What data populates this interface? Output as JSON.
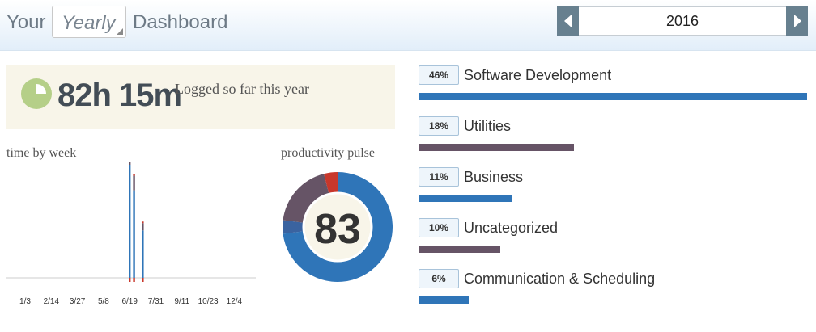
{
  "header": {
    "prefix": "Your",
    "period": "Yearly",
    "suffix": "Dashboard",
    "year": "2016"
  },
  "summary": {
    "time": "82h 15m",
    "label": "Logged so far this year"
  },
  "week_chart": {
    "title": "time by week",
    "x_labels": [
      "1/3",
      "2/14",
      "3/27",
      "5/8",
      "6/19",
      "7/31",
      "9/11",
      "10/23",
      "12/4"
    ],
    "series_colors": [
      "#2f75b8",
      "#665466",
      "#c8372b"
    ],
    "bars": [
      {
        "week": "6/19",
        "values": [
          31,
          5,
          0.5
        ]
      },
      {
        "week": "6/26",
        "values": [
          24,
          4,
          0.3
        ]
      },
      {
        "week": "7/10",
        "values": [
          13,
          2,
          0.3
        ]
      }
    ]
  },
  "pulse": {
    "title": "productivity pulse",
    "score": "83",
    "segments": [
      {
        "value": 73,
        "color": "#2f75b8"
      },
      {
        "value": 4,
        "color": "#3a63a0"
      },
      {
        "value": 19,
        "color": "#665466"
      },
      {
        "value": 4,
        "color": "#c8372b"
      }
    ]
  },
  "categories": [
    {
      "pct": "46%",
      "name": "Software Development",
      "share": 1.0,
      "color": "#2f75b8"
    },
    {
      "pct": "18%",
      "name": "Utilities",
      "share": 0.4,
      "color": "#665466"
    },
    {
      "pct": "11%",
      "name": "Business",
      "share": 0.24,
      "color": "#2f75b8"
    },
    {
      "pct": "10%",
      "name": "Uncategorized",
      "share": 0.21,
      "color": "#665466"
    },
    {
      "pct": "6%",
      "name": "Communication & Scheduling",
      "share": 0.13,
      "color": "#2f75b8"
    }
  ]
}
